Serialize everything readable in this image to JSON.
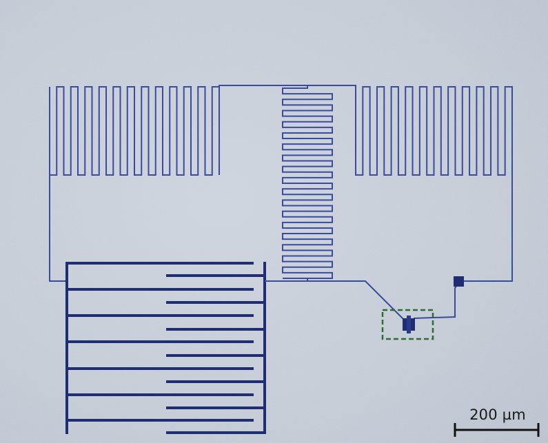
{
  "image": {
    "description_type": "optical micrograph of superconducting circuit",
    "colors": {
      "background": "#c4ccd7",
      "wire": "#3a4a9c",
      "thick_wire": "#1f2d72",
      "highlight_box": "#2f6b34",
      "scale_bar": "#111111"
    }
  },
  "scale_bar": {
    "label": "200 µm"
  }
}
